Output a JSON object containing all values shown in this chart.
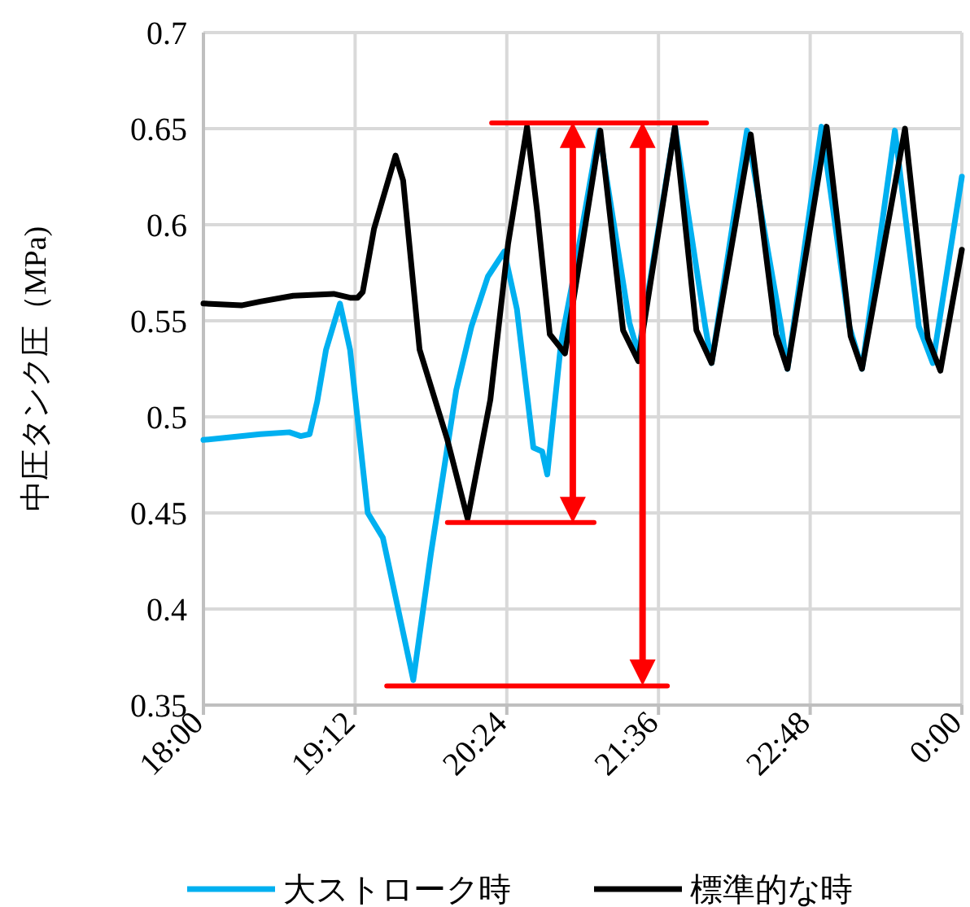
{
  "chart_data": {
    "type": "line",
    "ylabel": "中圧タンク圧（MPa)",
    "xlim": [
      18,
      24
    ],
    "ylim": [
      0.35,
      0.7
    ],
    "xticks": [
      {
        "value": 18,
        "label": "18:00"
      },
      {
        "value": 19.2,
        "label": "19:12"
      },
      {
        "value": 20.4,
        "label": "20:24"
      },
      {
        "value": 21.6,
        "label": "21:36"
      },
      {
        "value": 22.8,
        "label": "22:48"
      },
      {
        "value": 24,
        "label": "0:00"
      }
    ],
    "yticks": [
      {
        "value": 0.35,
        "label": "0.35"
      },
      {
        "value": 0.4,
        "label": "0.4"
      },
      {
        "value": 0.45,
        "label": "0.45"
      },
      {
        "value": 0.5,
        "label": "0.5"
      },
      {
        "value": 0.55,
        "label": "0.55"
      },
      {
        "value": 0.6,
        "label": "0.6"
      },
      {
        "value": 0.65,
        "label": "0.65"
      },
      {
        "value": 0.7,
        "label": "0.7"
      }
    ],
    "grid": true,
    "legend": "bottom",
    "marker": "none",
    "line_style": "solid",
    "series": [
      {
        "name": "大ストローク時",
        "color": "#00b0f0",
        "x": [
          18.0,
          18.45,
          18.68,
          18.77,
          18.84,
          18.9,
          18.97,
          19.08,
          19.16,
          19.3,
          19.42,
          19.66,
          19.8,
          20.0,
          20.12,
          20.25,
          20.38,
          20.48,
          20.61,
          20.68,
          20.72,
          20.83,
          20.92,
          21.13,
          21.37,
          21.44,
          21.73,
          21.97,
          22.02,
          22.3,
          22.57,
          22.62,
          22.89,
          23.11,
          23.21,
          23.47,
          23.66,
          23.77,
          24.0
        ],
        "values": [
          0.488,
          0.491,
          0.492,
          0.49,
          0.491,
          0.508,
          0.535,
          0.559,
          0.535,
          0.45,
          0.437,
          0.363,
          0.429,
          0.514,
          0.547,
          0.573,
          0.586,
          0.556,
          0.484,
          0.482,
          0.47,
          0.539,
          0.57,
          0.649,
          0.549,
          0.533,
          0.651,
          0.547,
          0.528,
          0.649,
          0.547,
          0.525,
          0.651,
          0.547,
          0.525,
          0.649,
          0.547,
          0.528,
          0.625
        ]
      },
      {
        "name": "標準的な時",
        "color": "#000000",
        "x": [
          18.0,
          18.3,
          18.45,
          18.71,
          19.03,
          19.16,
          19.22,
          19.26,
          19.35,
          19.52,
          19.58,
          19.71,
          19.93,
          20.09,
          20.27,
          20.41,
          20.56,
          20.64,
          20.74,
          20.86,
          21.14,
          21.32,
          21.44,
          21.73,
          21.9,
          22.02,
          22.33,
          22.53,
          22.62,
          22.93,
          23.12,
          23.21,
          23.55,
          23.73,
          23.83,
          24.0
        ],
        "values": [
          0.559,
          0.558,
          0.56,
          0.563,
          0.564,
          0.562,
          0.562,
          0.565,
          0.598,
          0.636,
          0.623,
          0.535,
          0.488,
          0.447,
          0.509,
          0.59,
          0.651,
          0.607,
          0.543,
          0.533,
          0.649,
          0.545,
          0.529,
          0.651,
          0.545,
          0.528,
          0.647,
          0.543,
          0.525,
          0.651,
          0.542,
          0.525,
          0.65,
          0.541,
          0.524,
          0.587
        ]
      },
      {
        "color": "#ff0000",
        "x": [
          20.28,
          21.98
        ],
        "values": [
          0.653,
          0.653
        ]
      },
      {
        "color": "#ff0000",
        "x": [
          19.93,
          21.09
        ],
        "values": [
          0.445,
          0.445
        ]
      },
      {
        "color": "#ff0000",
        "x": [
          19.45,
          21.67
        ],
        "values": [
          0.36,
          0.36
        ]
      }
    ]
  }
}
